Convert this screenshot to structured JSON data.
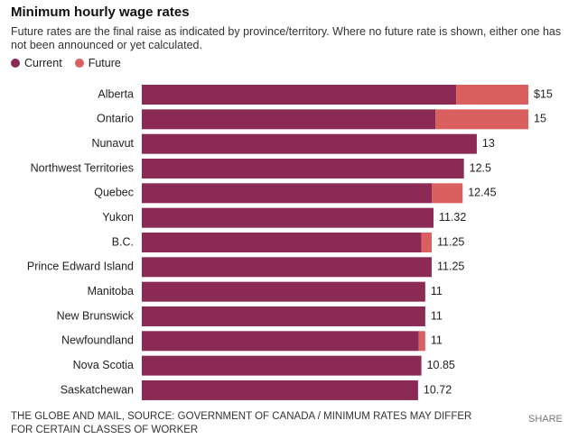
{
  "chart_data": {
    "type": "bar",
    "orientation": "horizontal",
    "title": "Minimum hourly wage rates",
    "subtitle": "Future rates are the final raise as indicated by province/territory. Where no future rate is shown, either one has not been announced or yet calculated.",
    "categories": [
      "Alberta",
      "Ontario",
      "Nunavut",
      "Northwest Territories",
      "Quebec",
      "Yukon",
      "B.C.",
      "Prince Edward Island",
      "Manitoba",
      "New Brunswick",
      "Newfoundland",
      "Nova Scotia",
      "Saskatchewan"
    ],
    "series": [
      {
        "name": "Current",
        "color": "#8b2a55",
        "values": [
          12.2,
          11.4,
          13,
          12.5,
          11.25,
          11.32,
          10.85,
          11.25,
          11,
          11,
          10.75,
          10.85,
          10.72
        ]
      },
      {
        "name": "Future",
        "color": "#d9605f",
        "values": [
          15,
          15,
          null,
          null,
          12.45,
          null,
          11.25,
          null,
          null,
          null,
          11,
          null,
          null
        ],
        "value_labels": [
          "$15",
          "15",
          null,
          null,
          "12.45",
          null,
          "11.25",
          null,
          null,
          null,
          "11",
          null,
          null
        ]
      }
    ],
    "xlim": [
      0,
      15
    ],
    "footer": "THE GLOBE AND MAIL, SOURCE: GOVERNMENT OF CANADA / MINIMUM RATES MAY DIFFER FOR CERTAIN CLASSES OF WORKER",
    "share": "SHARE"
  }
}
